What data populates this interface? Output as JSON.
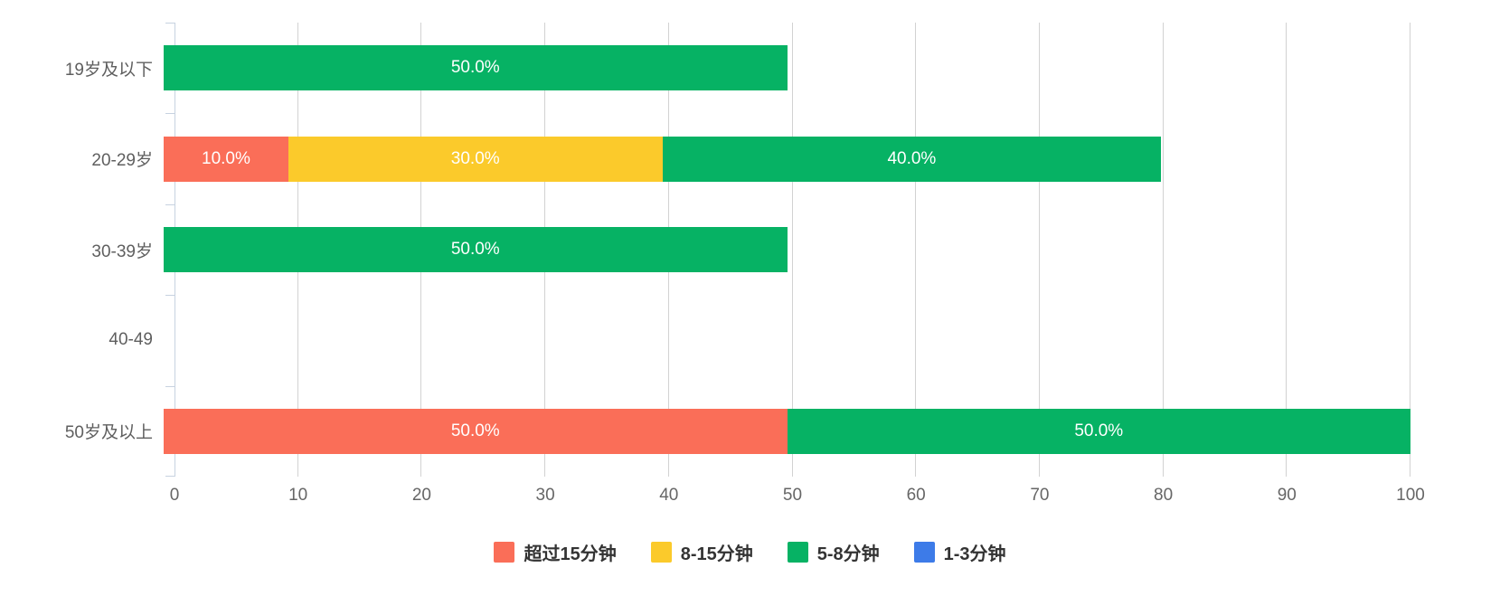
{
  "chart": {
    "background": "#ffffff",
    "axis": {
      "line_color": "#c7d2e0",
      "grid_color": "#d2d2d2",
      "category_label_color": "#5f5f5f",
      "tick_label_color": "#666666"
    },
    "legend": {
      "text_color": "#333333",
      "position": "bottom-center",
      "items": [
        {
          "label": "超过15分钟",
          "color": "#fa6e58"
        },
        {
          "label": "8-15分钟",
          "color": "#fbca2b"
        },
        {
          "label": "5-8分钟",
          "color": "#06b264"
        },
        {
          "label": "1-3分钟",
          "color": "#3d7be8"
        }
      ]
    }
  },
  "chart_data": {
    "type": "bar",
    "orientation": "horizontal",
    "stacked": true,
    "title": "",
    "xlabel": "",
    "ylabel": "",
    "categories": [
      "19岁及以下",
      "20-29岁",
      "30-39岁",
      "40-49",
      "50岁及以上"
    ],
    "series": [
      {
        "name": "超过15分钟",
        "color": "#fa6e58",
        "values": [
          0,
          10,
          0,
          0,
          50
        ]
      },
      {
        "name": "8-15分钟",
        "color": "#fbca2b",
        "values": [
          0,
          30,
          0,
          0,
          0
        ]
      },
      {
        "name": "5-8分钟",
        "color": "#06b264",
        "values": [
          50,
          40,
          50,
          0,
          50
        ]
      },
      {
        "name": "1-3分钟",
        "color": "#3d7be8",
        "values": [
          0,
          0,
          0,
          0,
          0
        ]
      }
    ],
    "visible_value_labels": [
      "50.0%",
      "10.0%",
      "30.0%",
      "40.0%",
      "50.0%",
      "50.0%"
    ],
    "value_label_decimals": 1,
    "value_label_suffix": "%",
    "xlim": [
      0,
      100
    ],
    "x_tick_step": 10,
    "x_tick_labels": [
      "0",
      "10",
      "20",
      "30",
      "40",
      "50",
      "60",
      "70",
      "80",
      "90",
      "100"
    ],
    "grid": true,
    "legend_position": "bottom"
  }
}
